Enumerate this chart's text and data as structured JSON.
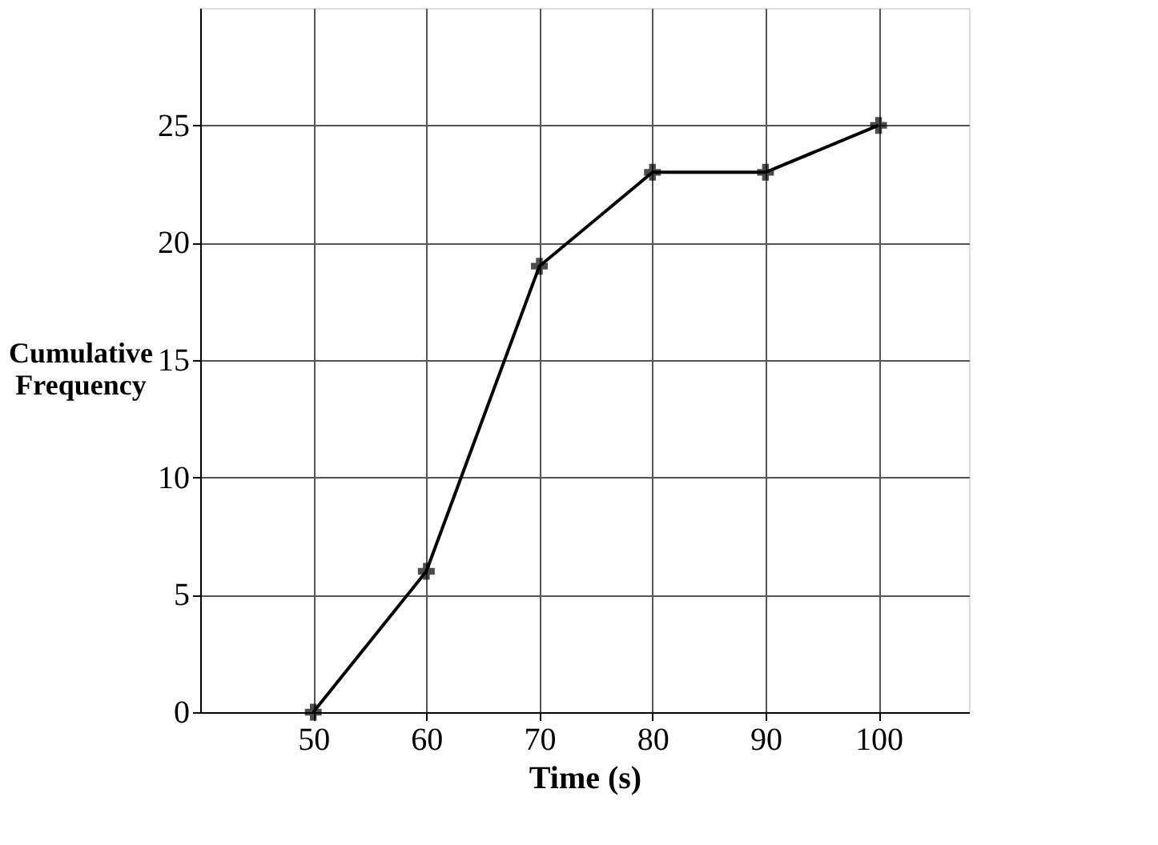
{
  "chart_data": {
    "type": "line",
    "xlabel": "Time (s)",
    "ylabel": "Cumulative Frequency",
    "x": [
      50,
      60,
      70,
      80,
      90,
      100
    ],
    "series": [
      {
        "color": "#000000",
        "values": [
          0,
          6,
          19,
          23,
          23,
          25
        ]
      }
    ],
    "xlim": [
      40,
      108
    ],
    "ylim": [
      0,
      30
    ],
    "xticks": [
      50,
      60,
      70,
      80,
      90,
      100
    ],
    "yticks": [
      0,
      5,
      10,
      15,
      20,
      25
    ],
    "grid": true,
    "marker": "cross",
    "line_style": "solid"
  }
}
